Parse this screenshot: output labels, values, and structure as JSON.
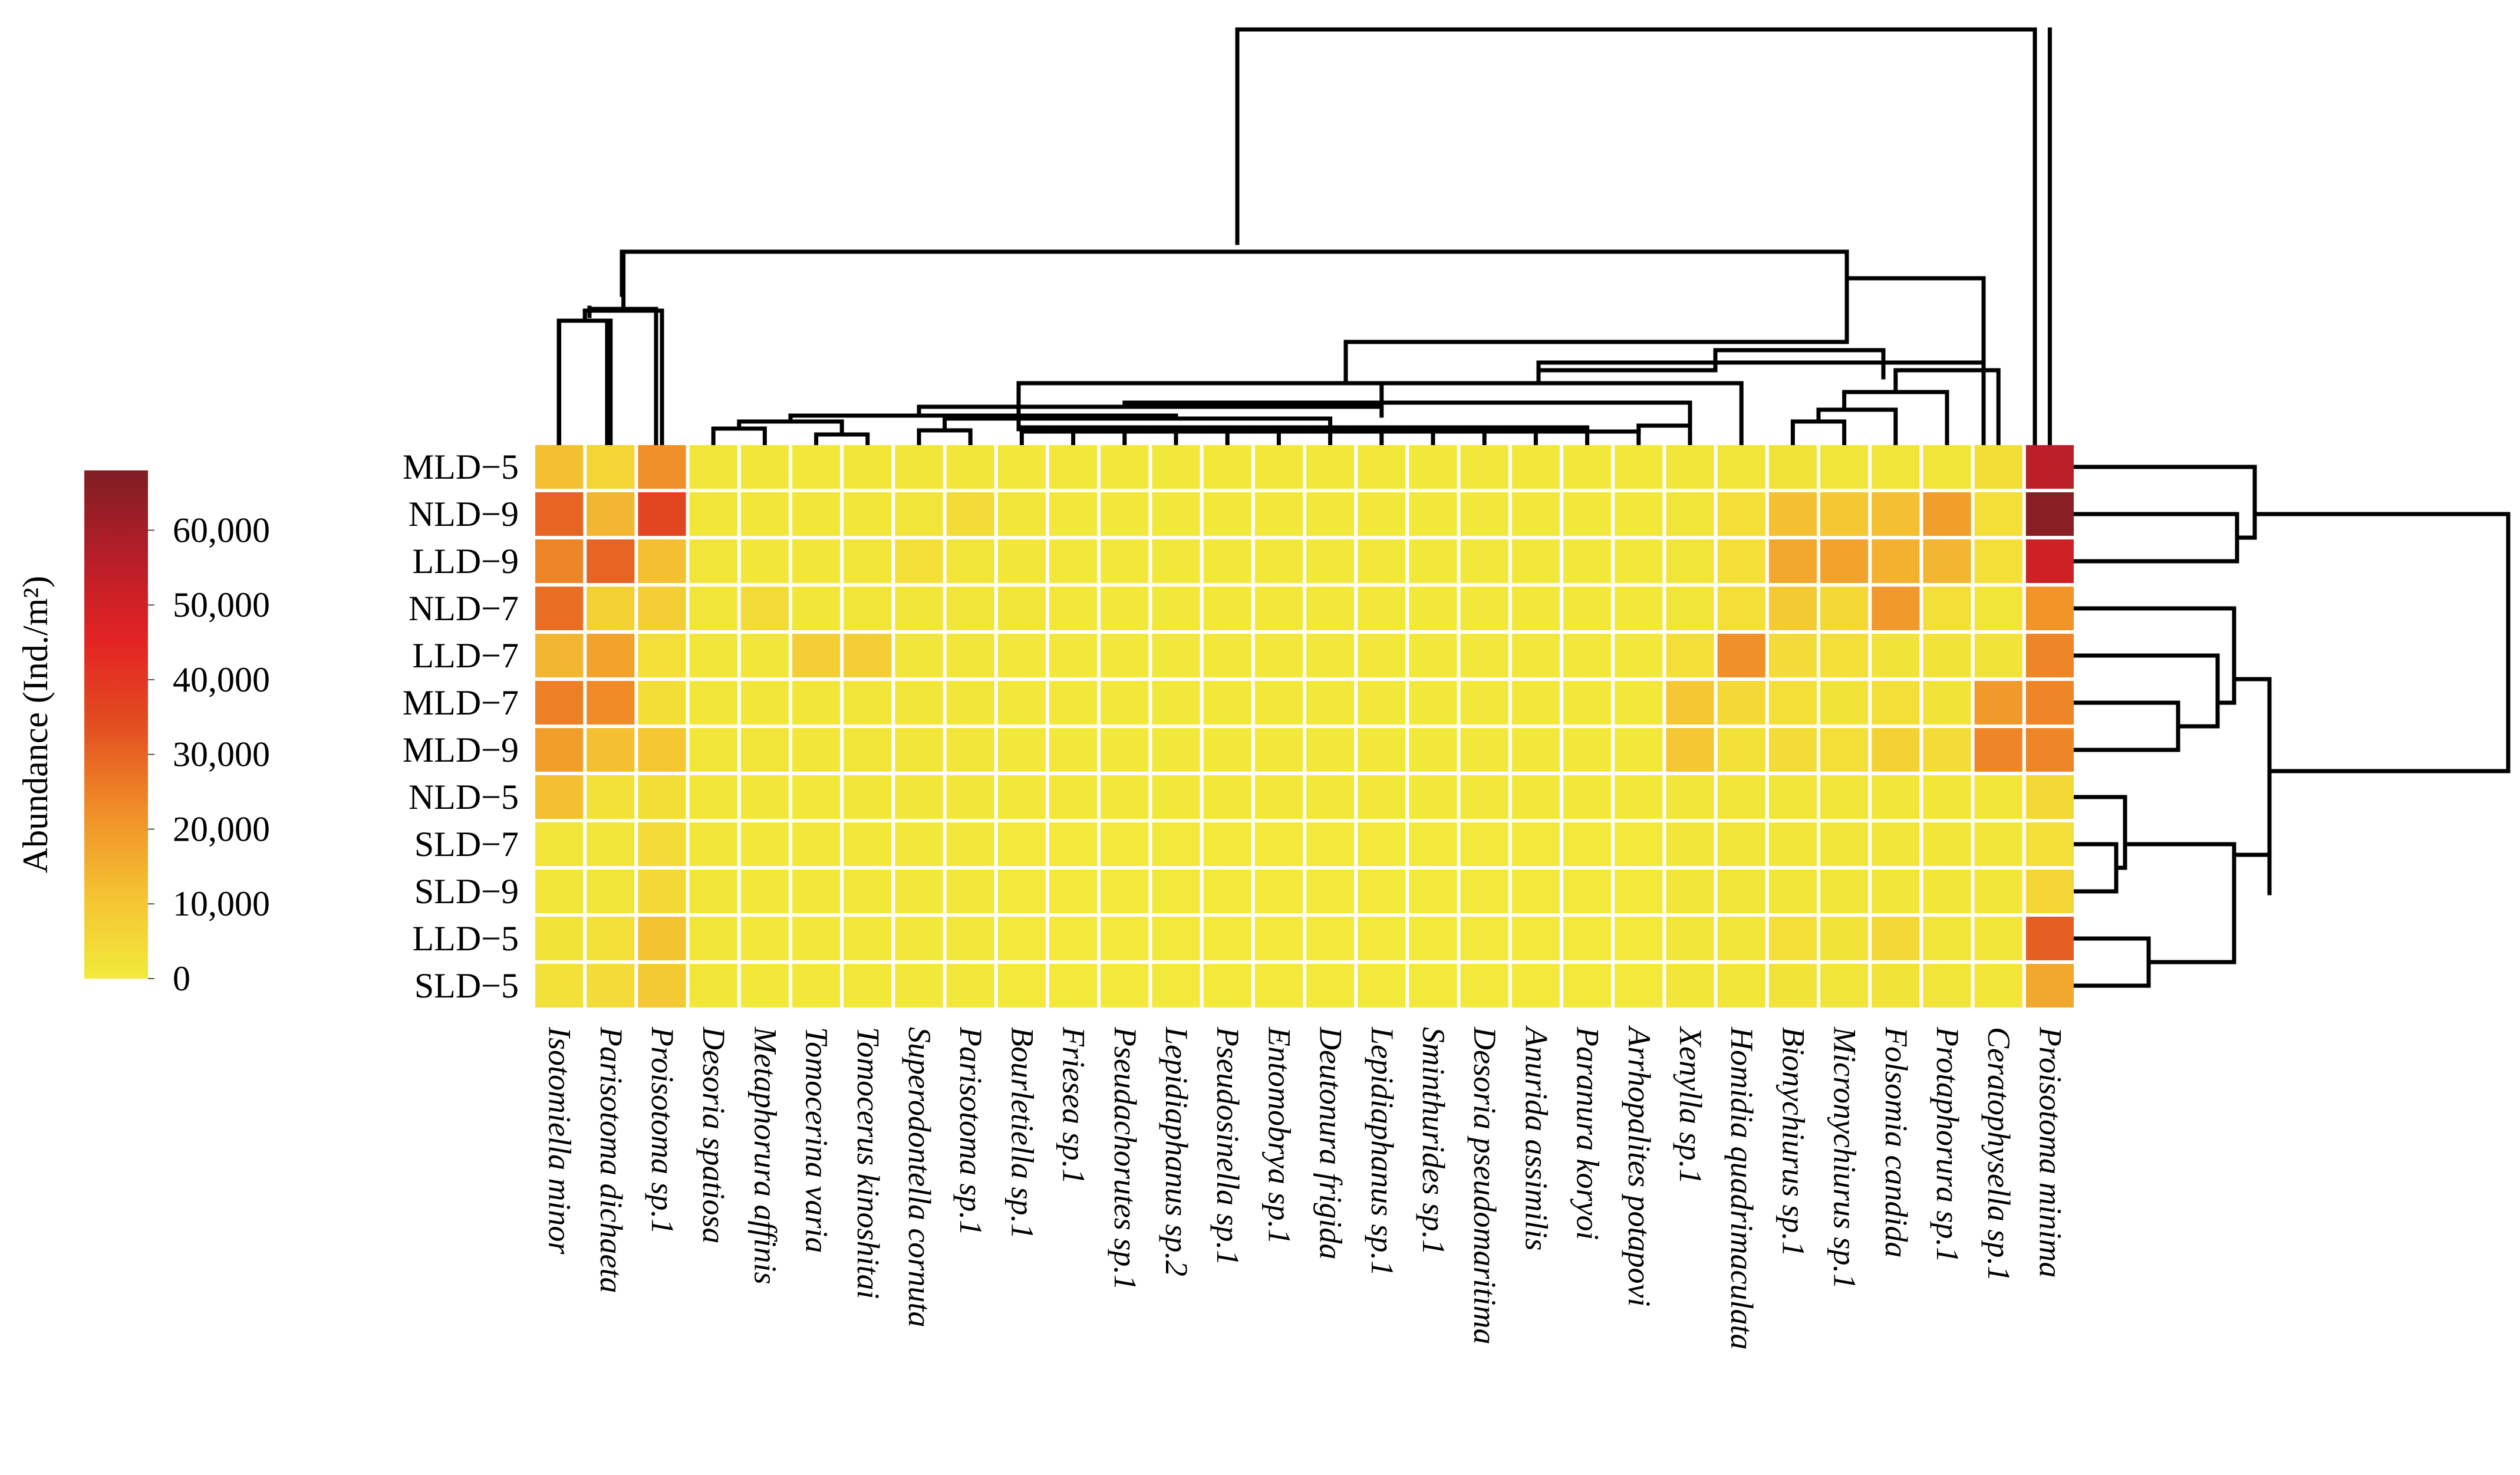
{
  "chart_data": {
    "type": "heatmap",
    "title": "",
    "rows": [
      "MLD−5",
      "NLD−9",
      "LLD−9",
      "NLD−7",
      "LLD−7",
      "MLD−7",
      "MLD−9",
      "NLD−5",
      "SLD−7",
      "SLD−9",
      "LLD−5",
      "SLD−5"
    ],
    "columns": [
      "Isotomiella minor",
      "Parisotoma dichaeta",
      "Proisotoma sp.1",
      "Desoria spatiosa",
      "Metaphorura affinis",
      "Tomocerina varia",
      "Tomocerus kinoshitai",
      "Superodontella cornuta",
      "Parisotoma sp.1",
      "Bourletiella sp.1",
      "Friesea sp.1",
      "Pseudachorutes sp.1",
      "Lepidiaphanus sp.2",
      "Pseudosinella sp.1",
      "Entomobrya sp.1",
      "Deutonura frigida",
      "Lepidiaphanus sp.1",
      "Sminthurides sp.1",
      "Desoria pseudomaritima",
      "Anurida assimilis",
      "Paranura koryoi",
      "Arrhopalites potapovi",
      "Xenylla sp.1",
      "Homidia quadrimaculata",
      "Bionychiurus sp.1",
      "Micronychiurus sp.1",
      "Folsomia candida",
      "Protaphorura sp.1",
      "Ceratophysella sp.1",
      "Proisotoma minima"
    ],
    "values": [
      [
        12000,
        6000,
        22000,
        1500,
        800,
        600,
        1000,
        1000,
        1000,
        500,
        500,
        500,
        500,
        500,
        500,
        500,
        500,
        500,
        500,
        500,
        500,
        500,
        1000,
        1500,
        2000,
        1500,
        1500,
        1500,
        3500,
        55000
      ],
      [
        30000,
        14000,
        36000,
        1200,
        1000,
        800,
        1000,
        1500,
        4000,
        800,
        600,
        600,
        600,
        600,
        600,
        600,
        600,
        600,
        600,
        600,
        600,
        600,
        1500,
        3000,
        12000,
        10000,
        12000,
        19000,
        3000,
        66000
      ],
      [
        24000,
        30000,
        12000,
        1500,
        1200,
        1000,
        1500,
        3000,
        1500,
        800,
        600,
        600,
        600,
        600,
        600,
        600,
        600,
        600,
        600,
        600,
        600,
        600,
        1500,
        3000,
        17000,
        18000,
        15000,
        14000,
        3000,
        51000
      ],
      [
        28000,
        7000,
        8000,
        1500,
        4000,
        1000,
        1500,
        1000,
        1500,
        800,
        600,
        600,
        600,
        600,
        600,
        600,
        600,
        600,
        600,
        600,
        600,
        600,
        1500,
        3000,
        9000,
        5000,
        20000,
        3000,
        1500,
        21000
      ],
      [
        14000,
        18000,
        3000,
        1000,
        1000,
        8000,
        8000,
        1000,
        1000,
        600,
        600,
        600,
        600,
        600,
        600,
        600,
        600,
        600,
        600,
        600,
        600,
        600,
        3000,
        22000,
        4000,
        3000,
        2000,
        2000,
        2000,
        24000
      ],
      [
        25000,
        23000,
        3500,
        1000,
        1000,
        1000,
        1500,
        1000,
        1000,
        600,
        600,
        600,
        600,
        600,
        600,
        600,
        600,
        600,
        600,
        600,
        600,
        600,
        10000,
        5000,
        3000,
        2000,
        3000,
        2000,
        20000,
        24000
      ],
      [
        19000,
        12000,
        10000,
        1000,
        1500,
        1000,
        1500,
        1000,
        1000,
        600,
        600,
        600,
        600,
        600,
        600,
        600,
        600,
        600,
        600,
        600,
        600,
        600,
        10000,
        2500,
        4000,
        3000,
        7000,
        4000,
        24000,
        24000
      ],
      [
        12000,
        2500,
        3500,
        1000,
        800,
        600,
        800,
        800,
        800,
        500,
        500,
        500,
        500,
        500,
        500,
        500,
        500,
        500,
        500,
        500,
        500,
        500,
        1000,
        1500,
        1500,
        1000,
        1000,
        1000,
        1000,
        5000
      ],
      [
        1500,
        1500,
        4000,
        800,
        600,
        500,
        600,
        600,
        600,
        400,
        400,
        400,
        400,
        400,
        400,
        400,
        400,
        400,
        400,
        400,
        400,
        400,
        800,
        1000,
        1000,
        800,
        800,
        800,
        800,
        3000
      ],
      [
        1000,
        1500,
        5000,
        800,
        600,
        500,
        600,
        600,
        600,
        400,
        400,
        400,
        400,
        400,
        400,
        400,
        400,
        400,
        400,
        400,
        400,
        400,
        800,
        1000,
        1000,
        800,
        800,
        800,
        800,
        6000
      ],
      [
        2000,
        2500,
        11000,
        800,
        600,
        500,
        600,
        600,
        600,
        400,
        400,
        400,
        400,
        400,
        400,
        400,
        400,
        400,
        400,
        400,
        400,
        400,
        800,
        1000,
        3000,
        2000,
        5000,
        1500,
        1000,
        31000
      ],
      [
        2500,
        4000,
        9000,
        800,
        600,
        500,
        600,
        600,
        600,
        400,
        400,
        400,
        400,
        400,
        400,
        400,
        400,
        400,
        400,
        400,
        400,
        400,
        800,
        1000,
        2000,
        1500,
        2000,
        1500,
        1000,
        17000
      ]
    ],
    "colorbar": {
      "title": "Abundance (Ind./m²)",
      "ticks": [
        0,
        10000,
        20000,
        30000,
        40000,
        50000,
        60000
      ],
      "tick_labels": [
        "0",
        "10,000",
        "20,000",
        "30,000",
        "40,000",
        "50,000",
        "60,000"
      ],
      "range": [
        0,
        68000
      ],
      "colors": [
        "#f2ea3a",
        "#f4c232",
        "#f08d28",
        "#e24e20",
        "#e42323",
        "#b51e28",
        "#7f1e24"
      ]
    },
    "row_dendrogram": true,
    "column_dendrogram": true,
    "cell_border_color": "#ffffff"
  }
}
